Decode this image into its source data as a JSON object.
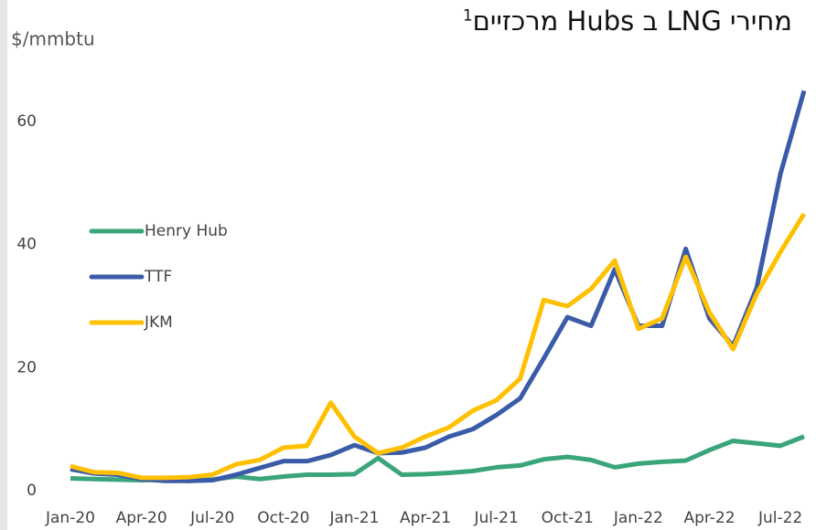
{
  "chart_data": {
    "type": "line",
    "title": "מחירי LNG ב Hubs מרכזיים",
    "title_footnote": "1",
    "y_label": "$/mmbtu",
    "categories": [
      "Jan-20",
      null,
      null,
      "Apr-20",
      null,
      null,
      "Jul-20",
      null,
      null,
      "Oct-20",
      null,
      null,
      "Jan-21",
      null,
      null,
      "Apr-21",
      null,
      null,
      "Jul-21",
      null,
      null,
      "Oct-21",
      null,
      null,
      "Jan-22",
      null,
      null,
      "Apr-22",
      null,
      null,
      "Jul-22",
      null
    ],
    "series": [
      {
        "name": "Henry Hub",
        "color": "#3aa57a",
        "values": [
          2.0,
          1.9,
          1.8,
          1.7,
          1.8,
          1.6,
          1.8,
          2.3,
          1.9,
          2.3,
          2.6,
          2.6,
          2.7,
          5.3,
          2.6,
          2.7,
          2.9,
          3.2,
          3.8,
          4.1,
          5.1,
          5.5,
          5.0,
          3.8,
          4.4,
          4.7,
          4.9,
          6.6,
          8.1,
          7.7,
          7.3,
          8.8
        ]
      },
      {
        "name": "TTF",
        "color": "#3a5ba8",
        "values": [
          3.5,
          2.8,
          2.6,
          1.9,
          1.6,
          1.6,
          1.7,
          2.6,
          3.7,
          4.8,
          4.8,
          5.8,
          7.4,
          6.1,
          6.2,
          7.0,
          8.8,
          10.0,
          12.3,
          15.0,
          21.5,
          28.2,
          26.8,
          36.0,
          26.8,
          26.8,
          39.3,
          28.0,
          23.5,
          33.0,
          51.5,
          65.0
        ]
      },
      {
        "name": "JKM",
        "color": "#ffc000",
        "values": [
          4.0,
          3.0,
          2.9,
          2.1,
          2.1,
          2.2,
          2.6,
          4.3,
          5.0,
          7.0,
          7.3,
          14.3,
          8.8,
          6.1,
          7.0,
          8.8,
          10.3,
          13.0,
          14.7,
          18.2,
          31.0,
          30.0,
          32.8,
          37.4,
          26.3,
          28.0,
          38.0,
          29.0,
          23.0,
          32.0,
          38.8,
          45.0
        ]
      }
    ],
    "ylim": [
      0,
      66
    ],
    "yticks": [
      0,
      20,
      40,
      60
    ],
    "grid": false,
    "legend": "left"
  }
}
